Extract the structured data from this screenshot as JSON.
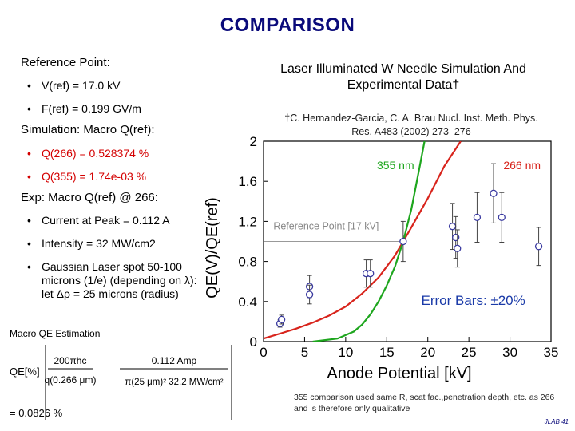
{
  "title": "COMPARISON",
  "left": {
    "reference_point": {
      "heading": "Reference Point:",
      "items": [
        "V(ref) = 17.0 kV",
        "F(ref) = 0.199 GV/m"
      ]
    },
    "simulation": {
      "heading": "Simulation:  Macro Q(ref):",
      "items": [
        "Q(266) = 0.528374 %",
        "Q(355) = 1.74e-03 %"
      ]
    },
    "experiment": {
      "heading": "Exp:  Macro Q(ref) @ 266:",
      "items": [
        "Current at Peak = 0.112 A",
        "Intensity = 32 MW/cm2",
        "Gaussian Laser spot 50-100 microns (1/e) (depending on λ): let Δρ = 25 microns (radius)"
      ]
    }
  },
  "right": {
    "subtitle": "Laser Illuminated W Needle Simulation And Experimental Data†",
    "citation": "†C. Hernandez-Garcia, C. A. Brau Nucl. Inst. Meth. Phys. Res. A483 (2002) 273–276"
  },
  "formula": {
    "label": "Macro QE Estimation",
    "lhs": "QE[%]",
    "num1": "200πhc",
    "den1": "q(0.266 μm)",
    "num2": "0.112 Amp",
    "den2": "π(25 μm)² 32.2 MW/cm²",
    "result": "= 0.0826 %"
  },
  "note": "355 comparison used same R, scat fac.,penetration depth,  etc. as 266 and is therefore only qualitative",
  "footer": "JLAB 41",
  "chart_data": {
    "type": "scatter",
    "xlabel": "Anode Potential [kV]",
    "ylabel": "QE(V)/QE(ref)",
    "xlim": [
      0,
      35
    ],
    "ylim": [
      0,
      2
    ],
    "xticks": [
      0,
      5,
      10,
      15,
      20,
      25,
      30,
      35
    ],
    "yticks": [
      0,
      0.4,
      0.8,
      1.2,
      1.6,
      2
    ],
    "annotations": {
      "reference_point": "Reference Point [17 kV]",
      "error_bars": "Error Bars:  ±20%",
      "label_355": "355 nm",
      "label_266": "266 nm"
    },
    "colors": {
      "red": "#d8241c",
      "green": "#1ea61e",
      "points": "#3a3aa0",
      "ref_line": "#999999"
    },
    "reference_point": {
      "x": 17,
      "y": 1.0
    },
    "series": [
      {
        "name": "266 nm",
        "curve": [
          [
            0,
            0.03
          ],
          [
            2,
            0.08
          ],
          [
            4,
            0.13
          ],
          [
            6,
            0.19
          ],
          [
            8,
            0.26
          ],
          [
            10,
            0.35
          ],
          [
            12,
            0.48
          ],
          [
            14,
            0.64
          ],
          [
            16,
            0.86
          ],
          [
            17,
            1.0
          ],
          [
            18,
            1.14
          ],
          [
            20,
            1.43
          ],
          [
            22,
            1.75
          ],
          [
            24,
            2.0
          ]
        ]
      },
      {
        "name": "355 nm",
        "curve": [
          [
            6,
            0.0
          ],
          [
            9,
            0.03
          ],
          [
            11,
            0.1
          ],
          [
            12,
            0.17
          ],
          [
            13,
            0.27
          ],
          [
            14,
            0.4
          ],
          [
            15,
            0.56
          ],
          [
            16,
            0.75
          ],
          [
            17,
            1.0
          ],
          [
            18,
            1.32
          ],
          [
            19,
            1.74
          ],
          [
            19.6,
            2.0
          ]
        ]
      }
    ],
    "points": [
      {
        "x": 2.0,
        "y": 0.18
      },
      {
        "x": 2.2,
        "y": 0.22
      },
      {
        "x": 5.6,
        "y": 0.55
      },
      {
        "x": 5.6,
        "y": 0.47
      },
      {
        "x": 12.5,
        "y": 0.68
      },
      {
        "x": 13.0,
        "y": 0.68
      },
      {
        "x": 17.0,
        "y": 1.0
      },
      {
        "x": 23.0,
        "y": 1.15
      },
      {
        "x": 23.4,
        "y": 1.04
      },
      {
        "x": 23.6,
        "y": 0.93
      },
      {
        "x": 26.0,
        "y": 1.24
      },
      {
        "x": 28.0,
        "y": 1.48
      },
      {
        "x": 29.0,
        "y": 1.24
      },
      {
        "x": 33.5,
        "y": 0.95
      }
    ]
  }
}
